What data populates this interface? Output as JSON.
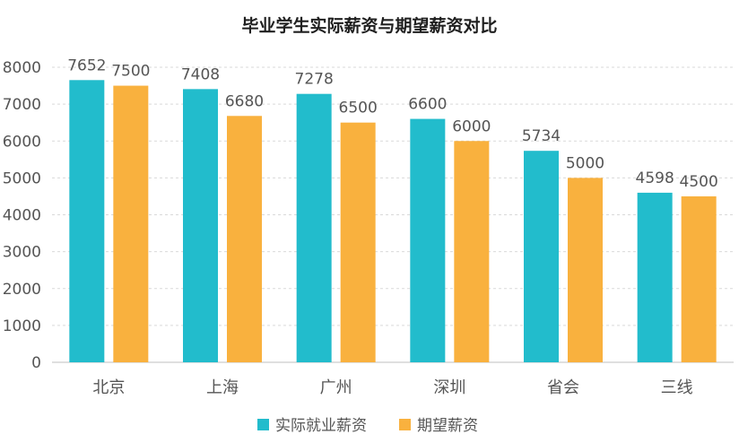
{
  "chart_data": {
    "type": "bar",
    "title": "毕业学生实际薪资与期望薪资对比",
    "categories": [
      "北京",
      "上海",
      "广州",
      "深圳",
      "省会",
      "三线"
    ],
    "series": [
      {
        "name": "实际就业薪资",
        "color": "#22bccc",
        "values": [
          7652,
          7408,
          7278,
          6600,
          5734,
          4598
        ]
      },
      {
        "name": "期望薪资",
        "color": "#f9b13e",
        "values": [
          7500,
          6680,
          6500,
          6000,
          5000,
          4500
        ]
      }
    ],
    "ylim": [
      0,
      8000
    ],
    "yticks": [
      "0",
      "1000",
      "2000",
      "3000",
      "4000",
      "5000",
      "6000",
      "7000",
      "8000"
    ],
    "grid": true,
    "legend": "bottom"
  }
}
